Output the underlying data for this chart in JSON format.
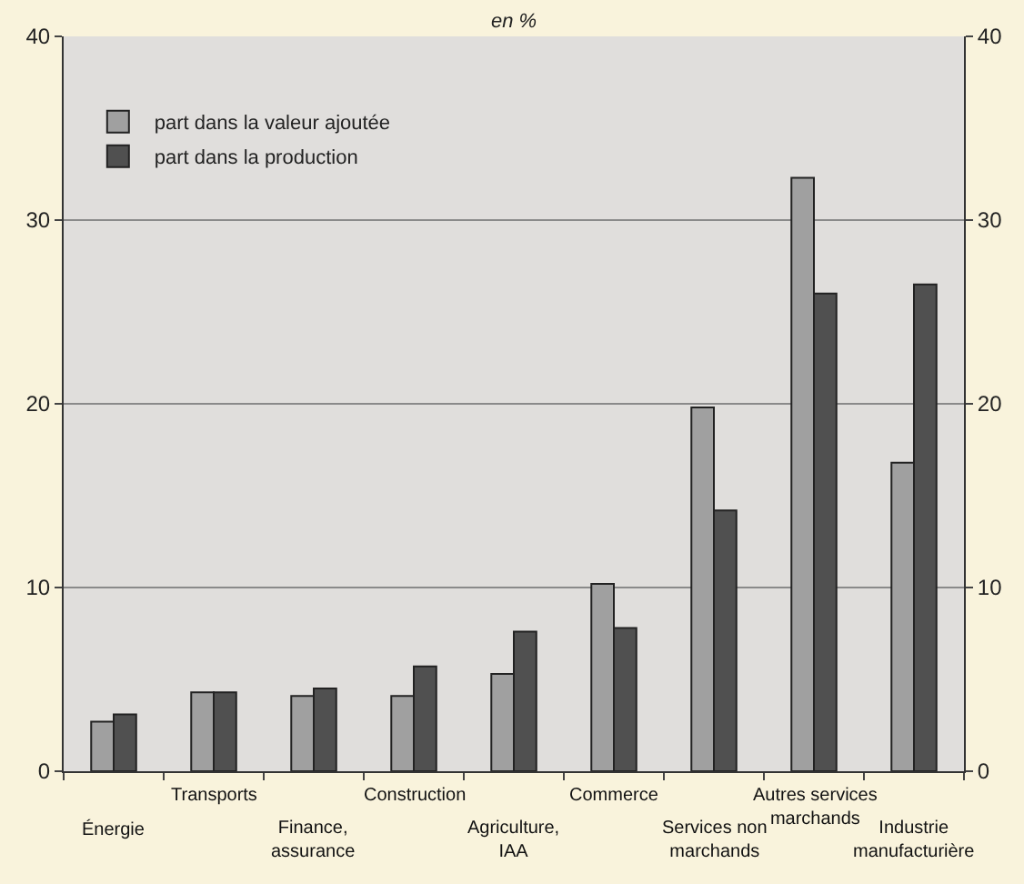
{
  "chart_data": {
    "type": "bar",
    "subtitle": "en %",
    "categories": [
      "Énergie",
      "Transports",
      "Finance,\nassurance",
      "Construction",
      "Agriculture,\nIAA",
      "Commerce",
      "Services non\nmarchands",
      "Autres services\nmarchands",
      "Industrie\nmanufacturière"
    ],
    "series": [
      {
        "name": "part dans la valeur ajoutée",
        "color": "#a0a0a0",
        "values": [
          2.7,
          4.3,
          4.1,
          4.1,
          5.3,
          10.2,
          19.8,
          32.3,
          16.8
        ]
      },
      {
        "name": "part dans la production",
        "color": "#505050",
        "values": [
          3.1,
          4.3,
          4.5,
          5.7,
          7.6,
          7.8,
          14.2,
          26.0,
          26.5
        ]
      }
    ],
    "ylim": [
      0,
      40
    ],
    "yticks": [
      0,
      10,
      20,
      30,
      40
    ],
    "y2lim": [
      0,
      40
    ],
    "y2ticks": [
      0,
      10,
      20,
      30,
      40
    ],
    "grid": "y",
    "legend": "top left"
  }
}
